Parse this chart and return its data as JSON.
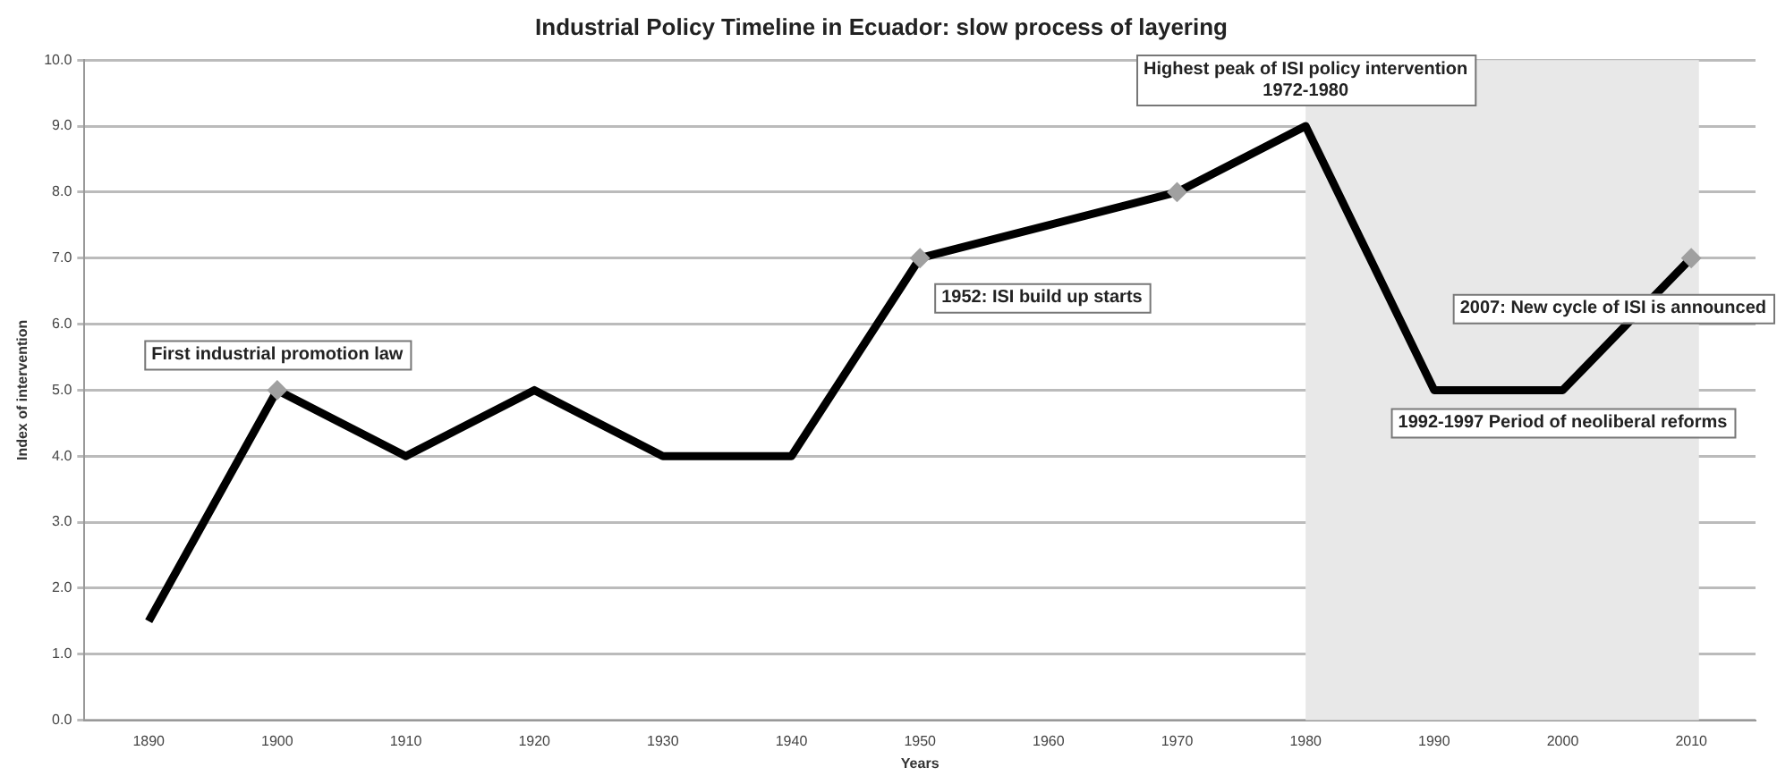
{
  "chart_data": {
    "type": "line",
    "title": "Industrial Policy Timeline in Ecuador: slow process of layering",
    "xlabel": "Years",
    "ylabel": "Index of intervention",
    "categories": [
      "1890",
      "1900",
      "1910",
      "1920",
      "1930",
      "1940",
      "1950",
      "1960",
      "1970",
      "1980",
      "1990",
      "2000",
      "2010"
    ],
    "series": [
      {
        "color": "#000000",
        "values": [
          1.5,
          5,
          4,
          5,
          4,
          4,
          7,
          7.5,
          8,
          9,
          5,
          5,
          7
        ],
        "marker": "none"
      },
      {
        "type": "scatter",
        "color": "#a0a0a0",
        "values": [
          null,
          5,
          null,
          null,
          null,
          null,
          7,
          null,
          8,
          null,
          null,
          null,
          7
        ],
        "marker": "diamond"
      }
    ],
    "ylim": [
      0,
      10
    ],
    "yticks": [
      {
        "value": 0,
        "label": "0.0"
      },
      {
        "value": 1,
        "label": "1.0"
      },
      {
        "value": 2,
        "label": "2.0"
      },
      {
        "value": 3,
        "label": "3.0"
      },
      {
        "value": 4,
        "label": "4.0"
      },
      {
        "value": 5,
        "label": "5.0"
      },
      {
        "value": 6,
        "label": "6.0"
      },
      {
        "value": 7,
        "label": "7.0"
      },
      {
        "value": 8,
        "label": "8.0"
      },
      {
        "value": 9,
        "label": "9.0"
      },
      {
        "value": 10,
        "label": "10.0"
      }
    ],
    "grid": "y",
    "legend": false,
    "bands": [
      {
        "axis": "x",
        "from": "1980",
        "to": "2010",
        "color": "#e8e8e8"
      }
    ],
    "annotations": [
      {
        "text": "First industrial promotion law",
        "x": "1900",
        "y": 5
      },
      {
        "text": "1952: ISI build up starts",
        "x": "1950",
        "y": 7
      },
      {
        "text": "Highest peak of ISI policy intervention\n1972-1980",
        "x": "1980",
        "y": 9
      },
      {
        "text": "2007: New cycle of ISI is announced",
        "x": "2010",
        "y": 7
      },
      {
        "text": "1992-1997 Period of neoliberal reforms",
        "x": "2000",
        "y": 5
      }
    ]
  }
}
